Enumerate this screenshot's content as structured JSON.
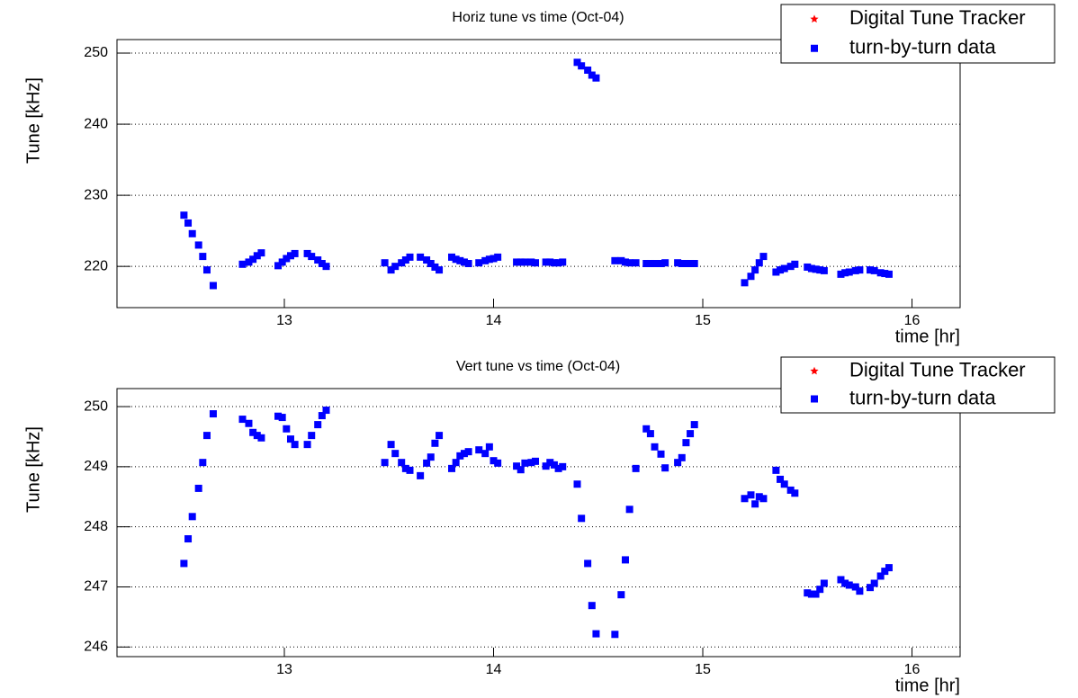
{
  "chart_data": [
    {
      "type": "scatter",
      "title": "Horiz tune vs time (Oct-04)",
      "x_label": "time [hr]",
      "y_label": "Tune [kHz]",
      "xlim": [
        12.2,
        16.23
      ],
      "ylim": [
        214.2,
        251.9
      ],
      "xticks": [
        13,
        14,
        15,
        16
      ],
      "yticks": [
        220,
        230,
        240,
        250
      ],
      "grid": true,
      "legend": "upper right",
      "series": [
        {
          "name": "Digital Tune Tracker",
          "color": "#ff0000",
          "marker": "star",
          "x": [],
          "values": []
        },
        {
          "name": "turn-by-turn data",
          "color": "#0000ff",
          "marker": "square",
          "x": [
            12.52,
            12.54,
            12.56,
            12.59,
            12.61,
            12.63,
            12.66,
            12.8,
            12.83,
            12.85,
            12.87,
            12.89,
            12.97,
            12.99,
            13.01,
            13.03,
            13.05,
            13.11,
            13.13,
            13.16,
            13.18,
            13.2,
            13.48,
            13.51,
            13.53,
            13.56,
            13.58,
            13.6,
            13.65,
            13.68,
            13.7,
            13.72,
            13.74,
            13.8,
            13.82,
            13.84,
            13.86,
            13.88,
            13.93,
            13.96,
            13.98,
            14.0,
            14.02,
            14.11,
            14.13,
            14.15,
            14.18,
            14.2,
            14.25,
            14.27,
            14.29,
            14.31,
            14.33,
            14.4,
            14.42,
            14.45,
            14.47,
            14.49,
            14.58,
            14.61,
            14.63,
            14.65,
            14.68,
            14.73,
            14.75,
            14.77,
            14.8,
            14.82,
            14.88,
            14.9,
            14.92,
            14.94,
            14.96,
            15.2,
            15.23,
            15.25,
            15.27,
            15.29,
            15.35,
            15.37,
            15.39,
            15.42,
            15.44,
            15.5,
            15.52,
            15.54,
            15.56,
            15.58,
            15.66,
            15.68,
            15.7,
            15.73,
            15.75,
            15.8,
            15.82,
            15.85,
            15.87,
            15.89
          ],
          "values": [
            227.2,
            226.1,
            224.6,
            223.0,
            221.4,
            219.5,
            217.3,
            220.3,
            220.6,
            221.0,
            221.5,
            221.9,
            220.1,
            220.6,
            221.1,
            221.5,
            221.8,
            221.8,
            221.4,
            220.9,
            220.4,
            220.0,
            220.5,
            219.5,
            220.0,
            220.5,
            220.9,
            221.3,
            221.3,
            220.9,
            220.4,
            219.9,
            219.5,
            221.3,
            221.0,
            220.8,
            220.6,
            220.4,
            220.5,
            220.8,
            221.0,
            221.1,
            221.3,
            220.6,
            220.6,
            220.6,
            220.6,
            220.5,
            220.6,
            220.6,
            220.5,
            220.5,
            220.6,
            248.7,
            248.2,
            247.6,
            246.9,
            246.5,
            220.8,
            220.8,
            220.6,
            220.5,
            220.5,
            220.4,
            220.4,
            220.4,
            220.4,
            220.5,
            220.5,
            220.4,
            220.4,
            220.4,
            220.4,
            217.7,
            218.6,
            219.5,
            220.5,
            221.4,
            219.2,
            219.5,
            219.7,
            220.0,
            220.3,
            219.9,
            219.7,
            219.6,
            219.5,
            219.4,
            218.9,
            219.1,
            219.2,
            219.4,
            219.5,
            219.5,
            219.4,
            219.1,
            219.0,
            218.9
          ]
        }
      ]
    },
    {
      "type": "scatter",
      "title": "Vert tune vs time (Oct-04)",
      "x_label": "time [hr]",
      "y_label": "Tune [kHz]",
      "xlim": [
        12.2,
        16.23
      ],
      "ylim": [
        245.84,
        250.3
      ],
      "xticks": [
        13,
        14,
        15,
        16
      ],
      "yticks": [
        246,
        247,
        248,
        249,
        250
      ],
      "grid": true,
      "legend": "upper right",
      "series": [
        {
          "name": "Digital Tune Tracker",
          "color": "#ff0000",
          "marker": "star",
          "x": [],
          "values": []
        },
        {
          "name": "turn-by-turn data",
          "color": "#0000ff",
          "marker": "square",
          "x": [
            12.52,
            12.54,
            12.56,
            12.59,
            12.61,
            12.63,
            12.66,
            12.8,
            12.83,
            12.85,
            12.87,
            12.89,
            12.97,
            12.99,
            13.01,
            13.03,
            13.05,
            13.11,
            13.13,
            13.16,
            13.18,
            13.2,
            13.48,
            13.51,
            13.53,
            13.56,
            13.58,
            13.6,
            13.65,
            13.68,
            13.7,
            13.72,
            13.74,
            13.8,
            13.82,
            13.84,
            13.86,
            13.88,
            13.93,
            13.96,
            13.98,
            14.0,
            14.02,
            14.11,
            14.13,
            14.15,
            14.18,
            14.2,
            14.25,
            14.27,
            14.29,
            14.31,
            14.33,
            14.4,
            14.42,
            14.45,
            14.47,
            14.49,
            14.58,
            14.61,
            14.63,
            14.65,
            14.68,
            14.73,
            14.75,
            14.77,
            14.8,
            14.82,
            14.88,
            14.9,
            14.92,
            14.94,
            14.96,
            15.2,
            15.23,
            15.25,
            15.27,
            15.29,
            15.35,
            15.37,
            15.39,
            15.42,
            15.44,
            15.5,
            15.52,
            15.54,
            15.56,
            15.58,
            15.66,
            15.68,
            15.7,
            15.73,
            15.75,
            15.8,
            15.82,
            15.85,
            15.87,
            15.89
          ],
          "values": [
            247.39,
            247.8,
            248.17,
            248.64,
            249.07,
            249.52,
            249.88,
            249.79,
            249.72,
            249.57,
            249.52,
            249.48,
            249.84,
            249.82,
            249.63,
            249.46,
            249.37,
            249.37,
            249.52,
            249.7,
            249.85,
            249.94,
            249.07,
            249.37,
            249.22,
            249.07,
            248.97,
            248.94,
            248.85,
            249.06,
            249.16,
            249.39,
            249.52,
            248.97,
            249.07,
            249.18,
            249.22,
            249.25,
            249.28,
            249.22,
            249.33,
            249.1,
            249.06,
            249.01,
            248.95,
            249.06,
            249.07,
            249.09,
            249.01,
            249.07,
            249.03,
            248.97,
            249.0,
            248.71,
            248.14,
            247.39,
            246.69,
            246.22,
            246.21,
            246.87,
            247.45,
            248.29,
            248.97,
            249.63,
            249.55,
            249.33,
            249.21,
            248.98,
            249.07,
            249.15,
            249.4,
            249.55,
            249.7,
            248.47,
            248.53,
            248.38,
            248.5,
            248.47,
            248.94,
            248.79,
            248.71,
            248.61,
            248.56,
            246.9,
            246.88,
            246.88,
            246.96,
            247.06,
            247.12,
            247.06,
            247.03,
            247.0,
            246.93,
            246.99,
            247.06,
            247.18,
            247.26,
            247.32
          ]
        }
      ]
    }
  ]
}
